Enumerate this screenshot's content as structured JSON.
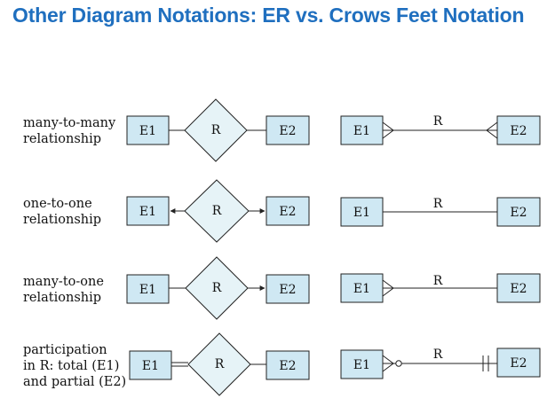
{
  "title": "Other Diagram Notations: ER vs. Crows Feet Notation",
  "colors": {
    "title": "#1f6fbf",
    "entity_fill": "#cfe8f3",
    "diamond_fill": "#e6f3f7",
    "stroke": "#222222"
  },
  "rows": [
    {
      "label": "many-to-many\nrelationship",
      "entity1": "E1",
      "relationship": "R",
      "entity2": "E2",
      "crow_label": "R"
    },
    {
      "label": "one-to-one\nrelationship",
      "entity1": "E1",
      "relationship": "R",
      "entity2": "E2",
      "crow_label": "R"
    },
    {
      "label": "many-to-one\nrelationship",
      "entity1": "E1",
      "relationship": "R",
      "entity2": "E2",
      "crow_label": "R"
    },
    {
      "label": "participation\nin R: total (E1)\nand partial (E2)",
      "entity1": "E1",
      "relationship": "R",
      "entity2": "E2",
      "crow_label": "R"
    }
  ]
}
